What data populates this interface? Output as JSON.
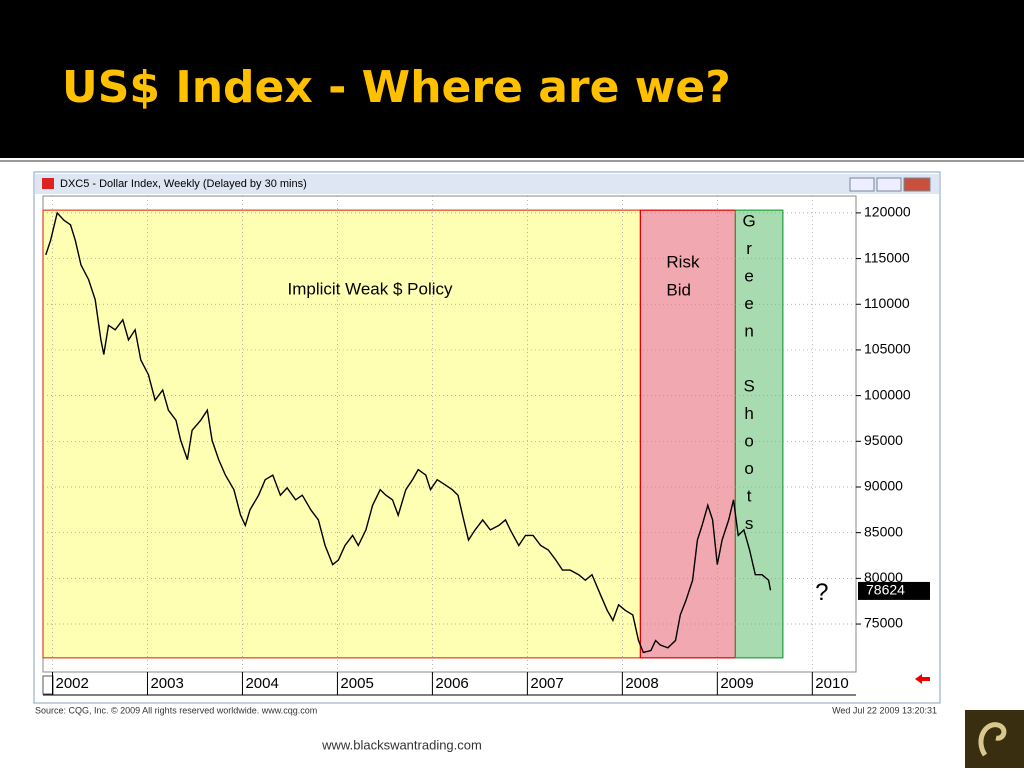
{
  "slide": {
    "title": "US$ Index - Where are we?",
    "footer": "www.blackswantrading.com"
  },
  "chart_data": {
    "type": "line",
    "title": "DXC5 - Dollar Index, Weekly (Delayed by 30 mins)",
    "source": "Source: CQG, Inc. © 2009 All rights reserved worldwide. www.cqg.com",
    "timestamp": "Wed Jul 22 2009 13:20:31",
    "color": "#000000",
    "x": [
      2001.93,
      2001.98,
      2002.05,
      2002.12,
      2002.19,
      2002.24,
      2002.3,
      2002.38,
      2002.45,
      2002.51,
      2002.54,
      2002.59,
      2002.66,
      2002.74,
      2002.8,
      2002.87,
      2002.93,
      2003.01,
      2003.08,
      2003.16,
      2003.22,
      2003.3,
      2003.35,
      2003.42,
      2003.47,
      2003.56,
      2003.63,
      2003.68,
      2003.75,
      2003.82,
      2003.91,
      2003.98,
      2004.03,
      2004.08,
      2004.17,
      2004.24,
      2004.32,
      2004.4,
      2004.47,
      2004.56,
      2004.63,
      2004.72,
      2004.8,
      2004.87,
      2004.95,
      2005.01,
      2005.08,
      2005.16,
      2005.22,
      2005.3,
      2005.37,
      2005.45,
      2005.51,
      2005.58,
      2005.64,
      2005.72,
      2005.79,
      2005.85,
      2005.93,
      2005.98,
      2006.05,
      2006.14,
      2006.21,
      2006.27,
      2006.33,
      2006.38,
      2006.45,
      2006.53,
      2006.61,
      2006.7,
      2006.77,
      2006.82,
      2006.91,
      2006.98,
      2007.06,
      2007.14,
      2007.22,
      2007.3,
      2007.37,
      2007.45,
      2007.54,
      2007.61,
      2007.68,
      2007.77,
      2007.84,
      2007.9,
      2007.96,
      2008.03,
      2008.11,
      2008.17,
      2008.22,
      2008.3,
      2008.35,
      2008.4,
      2008.48,
      2008.56,
      2008.61,
      2008.67,
      2008.74,
      2008.79,
      2008.84,
      2008.9,
      2008.95,
      2009.0,
      2009.05,
      2009.12,
      2009.17,
      2009.22,
      2009.28,
      2009.34,
      2009.4,
      2009.47,
      2009.54,
      2009.56
    ],
    "values": [
      115400,
      117000,
      120000,
      119200,
      118700,
      117000,
      114300,
      112700,
      110500,
      106100,
      104500,
      107700,
      107200,
      108300,
      106100,
      107200,
      103900,
      102300,
      99500,
      100600,
      98400,
      97300,
      95100,
      93000,
      96200,
      97300,
      98400,
      95100,
      93000,
      91300,
      89700,
      86900,
      85800,
      87500,
      89100,
      90800,
      91300,
      89100,
      89900,
      88600,
      89100,
      87500,
      86400,
      83600,
      81500,
      82000,
      83600,
      84700,
      83600,
      85300,
      88000,
      89700,
      89100,
      88600,
      86900,
      89700,
      90800,
      91900,
      91300,
      89700,
      90800,
      90200,
      89700,
      89100,
      86400,
      84200,
      85300,
      86400,
      85300,
      85800,
      86400,
      85300,
      83600,
      84700,
      84700,
      83600,
      83100,
      82000,
      80900,
      80900,
      80400,
      79800,
      80400,
      78200,
      76500,
      75400,
      77100,
      76500,
      76000,
      73200,
      71900,
      72100,
      73200,
      72700,
      72400,
      73200,
      76000,
      77600,
      79800,
      84200,
      85800,
      88000,
      86400,
      81500,
      84200,
      86400,
      88600,
      84700,
      85300,
      83100,
      80400,
      80400,
      79800,
      78700
    ],
    "xlim": [
      2001.9,
      2010.46
    ],
    "xticks": [
      2002,
      2003,
      2004,
      2005,
      2006,
      2007,
      2008,
      2009,
      2010
    ],
    "ylim": [
      69750,
      121850
    ],
    "yticks": [
      75000,
      80000,
      85000,
      90000,
      95000,
      100000,
      105000,
      110000,
      115000,
      120000
    ],
    "grid": true,
    "last_value": 78624,
    "regions": [
      {
        "label": "Implicit Weak $ Policy",
        "x0": 2001.9,
        "x1": 2008.19,
        "y0": 71300,
        "y1": 120300,
        "color": "#ffffb4",
        "edge": "#e04020"
      },
      {
        "label": "Risk Bid",
        "x0": 2008.19,
        "x1": 2009.19,
        "y0": 71300,
        "y1": 120300,
        "color": "#f2a8b0",
        "edge": "#e00000"
      },
      {
        "label": "Green Shoots",
        "x0": 2009.19,
        "x1": 2009.69,
        "y0": 71300,
        "y1": 120300,
        "color": "#a8dcb0",
        "edge": "#20a040"
      }
    ],
    "annotation": {
      "text": "?",
      "x": 2010.1,
      "y": 78300
    }
  }
}
